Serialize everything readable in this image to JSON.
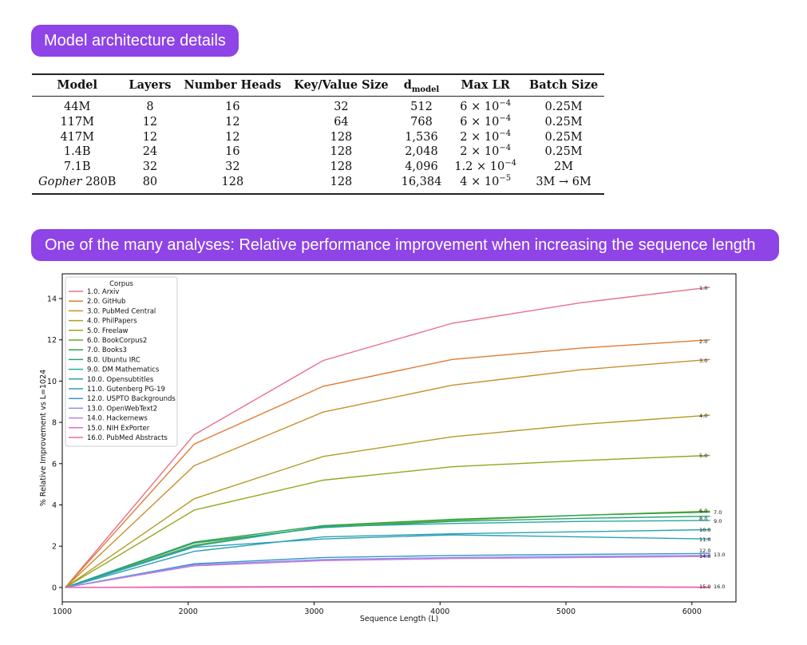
{
  "section1": {
    "title": "Model architecture details"
  },
  "section2": {
    "title": "One of the many analyses: Relative performance improvement when increasing the sequence length"
  },
  "table": {
    "headers": [
      "Model",
      "Layers",
      "Number Heads",
      "Key/Value Size",
      "d",
      "Max LR",
      "Batch Size"
    ],
    "header_d_sub": "model",
    "rows": [
      {
        "model": "44M",
        "model_italic": "",
        "layers": "8",
        "heads": "16",
        "kv": "32",
        "dmodel": "512",
        "lr_base": "6 × 10",
        "lr_exp": "−4",
        "batch": "0.25M"
      },
      {
        "model": "117M",
        "model_italic": "",
        "layers": "12",
        "heads": "12",
        "kv": "64",
        "dmodel": "768",
        "lr_base": "6 × 10",
        "lr_exp": "−4",
        "batch": "0.25M"
      },
      {
        "model": "417M",
        "model_italic": "",
        "layers": "12",
        "heads": "12",
        "kv": "128",
        "dmodel": "1,536",
        "lr_base": "2 × 10",
        "lr_exp": "−4",
        "batch": "0.25M"
      },
      {
        "model": "1.4B",
        "model_italic": "",
        "layers": "24",
        "heads": "16",
        "kv": "128",
        "dmodel": "2,048",
        "lr_base": "2 × 10",
        "lr_exp": "−4",
        "batch": "0.25M"
      },
      {
        "model": "7.1B",
        "model_italic": "",
        "layers": "32",
        "heads": "32",
        "kv": "128",
        "dmodel": "4,096",
        "lr_base": "1.2 × 10",
        "lr_exp": "−4",
        "batch": "2M"
      },
      {
        "model": "280B",
        "model_italic": "Gopher",
        "layers": "80",
        "heads": "128",
        "kv": "128",
        "dmodel": "16,384",
        "lr_base": "4 × 10",
        "lr_exp": "−5",
        "batch": "3M → 6M"
      }
    ]
  },
  "chart_data": {
    "type": "line",
    "title": "",
    "xlabel": "Sequence Length (L)",
    "ylabel": "% Relative Improvement vs L=1024",
    "xlim": [
      1000,
      6350
    ],
    "ylim": [
      -0.7,
      15.2
    ],
    "xticks": [
      1000,
      2000,
      3000,
      4000,
      5000,
      6000
    ],
    "yticks": [
      0,
      2,
      4,
      6,
      8,
      10,
      12,
      14
    ],
    "grid": false,
    "legend_title": "Corpus",
    "legend_position": "top-left",
    "x": [
      1024,
      2048,
      3072,
      4096,
      5120,
      6144
    ],
    "series": [
      {
        "name": "1.0. Arxiv",
        "end_label": "1.0",
        "color": "#e8708b",
        "values": [
          0,
          7.4,
          11.0,
          12.8,
          13.8,
          14.55
        ]
      },
      {
        "name": "2.0. GitHub",
        "end_label": "2.0",
        "color": "#df7b32",
        "values": [
          0,
          6.95,
          9.75,
          11.05,
          11.6,
          12.0
        ]
      },
      {
        "name": "3.0. PubMed Central",
        "end_label": "3.0",
        "color": "#c98f2c",
        "values": [
          0,
          5.9,
          8.5,
          9.8,
          10.55,
          11.05
        ]
      },
      {
        "name": "4.0. PhilPapers",
        "end_label": "4.0",
        "color": "#b39a23",
        "values": [
          0,
          4.3,
          6.35,
          7.3,
          7.9,
          8.35
        ]
      },
      {
        "name": "5.0. Freelaw",
        "end_label": "5.0",
        "color": "#96a51f",
        "values": [
          0,
          3.75,
          5.2,
          5.85,
          6.15,
          6.4
        ]
      },
      {
        "name": "6.0. BookCorpus2",
        "end_label": "6.0",
        "color": "#6ca51f",
        "values": [
          0,
          2.05,
          2.95,
          3.25,
          3.5,
          3.7
        ]
      },
      {
        "name": "7.0. Books3",
        "end_label": "7.0",
        "color": "#2fa24f",
        "values": [
          0,
          2.2,
          3.0,
          3.3,
          3.5,
          3.65
        ]
      },
      {
        "name": "8.0. Ubuntu IRC",
        "end_label": "8.0",
        "color": "#25a47a",
        "values": [
          0,
          2.15,
          2.9,
          3.2,
          3.35,
          3.45
        ]
      },
      {
        "name": "9.0. DM Mathematics",
        "end_label": "9.0",
        "color": "#27a79a",
        "values": [
          0,
          2.0,
          2.95,
          3.1,
          3.2,
          3.25
        ]
      },
      {
        "name": "10.0. Opensubtitles",
        "end_label": "10.0",
        "color": "#2aa3ad",
        "values": [
          0,
          1.75,
          2.45,
          2.6,
          2.7,
          2.8
        ]
      },
      {
        "name": "11.0. Gutenberg PG-19",
        "end_label": "11.0",
        "color": "#2c9fbd",
        "values": [
          0,
          1.95,
          2.35,
          2.55,
          2.45,
          2.35
        ]
      },
      {
        "name": "12.0. USPTO Backgrounds",
        "end_label": "12.0",
        "color": "#3a95d0",
        "values": [
          0,
          1.15,
          1.45,
          1.55,
          1.6,
          1.65
        ]
      },
      {
        "name": "13.0. OpenWebText2",
        "end_label": "13.0",
        "color": "#8a8fe0",
        "values": [
          0,
          1.1,
          1.35,
          1.45,
          1.5,
          1.55
        ]
      },
      {
        "name": "14.0. Hackernews",
        "end_label": "14.0",
        "color": "#c47ee0",
        "values": [
          0,
          1.05,
          1.3,
          1.4,
          1.45,
          1.5
        ]
      },
      {
        "name": "15.0. NIH ExPorter",
        "end_label": "15.0",
        "color": "#e26ad0",
        "values": [
          0,
          0.0,
          0.02,
          0.03,
          0.02,
          0.0
        ]
      },
      {
        "name": "16.0. PubMed Abstracts",
        "end_label": "16.0",
        "color": "#ea6aa6",
        "values": [
          0,
          0.03,
          0.05,
          0.05,
          0.04,
          0.02
        ]
      }
    ]
  }
}
